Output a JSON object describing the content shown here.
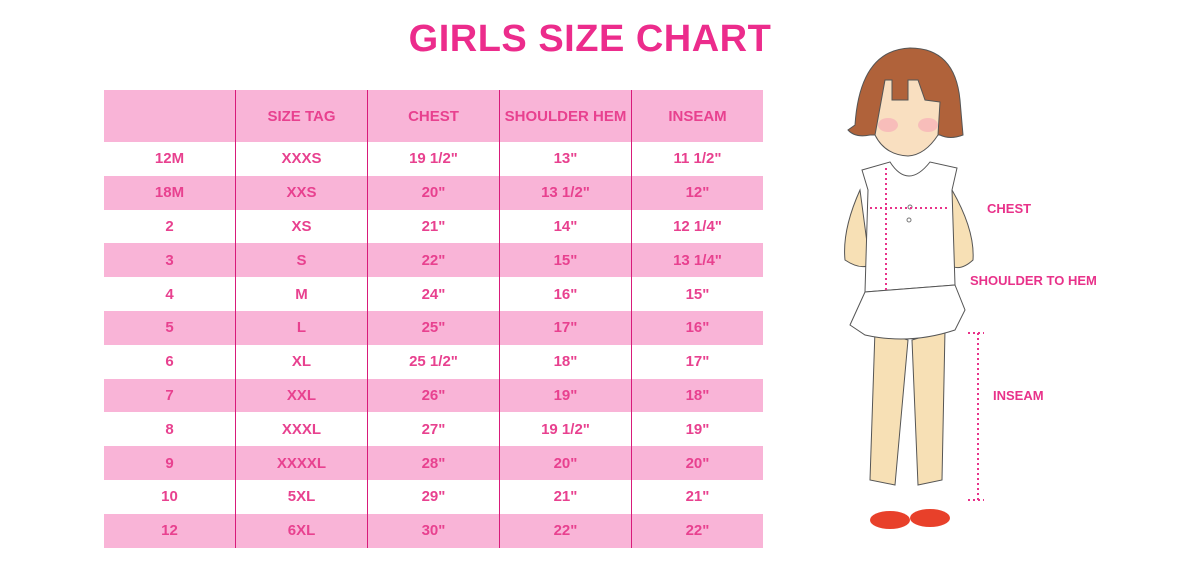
{
  "title": "GIRLS SIZE CHART",
  "table": {
    "headers": [
      "",
      "SIZE TAG",
      "CHEST",
      "SHOULDER HEM",
      "INSEAM"
    ],
    "rows": [
      [
        "12M",
        "XXXS",
        "19 1/2\"",
        "13\"",
        "11 1/2\""
      ],
      [
        "18M",
        "XXS",
        "20\"",
        "13 1/2\"",
        "12\""
      ],
      [
        "2",
        "XS",
        "21\"",
        "14\"",
        "12 1/4\""
      ],
      [
        "3",
        "S",
        "22\"",
        "15\"",
        "13 1/4\""
      ],
      [
        "4",
        "M",
        "24\"",
        "16\"",
        "15\""
      ],
      [
        "5",
        "L",
        "25\"",
        "17\"",
        "16\""
      ],
      [
        "6",
        "XL",
        "25 1/2\"",
        "18\"",
        "17\""
      ],
      [
        "7",
        "XXL",
        "26\"",
        "19\"",
        "18\""
      ],
      [
        "8",
        "XXXL",
        "27\"",
        "19 1/2\"",
        "19\""
      ],
      [
        "9",
        "XXXXL",
        "28\"",
        "20\"",
        "20\""
      ],
      [
        "10",
        "5XL",
        "29\"",
        "21\"",
        "21\""
      ],
      [
        "12",
        "6XL",
        "30\"",
        "22\"",
        "22\""
      ]
    ]
  },
  "figure": {
    "labels": {
      "chest": "CHEST",
      "shoulder_to_hem": "SHOULDER TO HEM",
      "inseam": "INSEAM"
    }
  },
  "colors": {
    "accent": "#ec2c8c",
    "row_pink": "#f9b4d7",
    "divider": "#d81b7a"
  }
}
